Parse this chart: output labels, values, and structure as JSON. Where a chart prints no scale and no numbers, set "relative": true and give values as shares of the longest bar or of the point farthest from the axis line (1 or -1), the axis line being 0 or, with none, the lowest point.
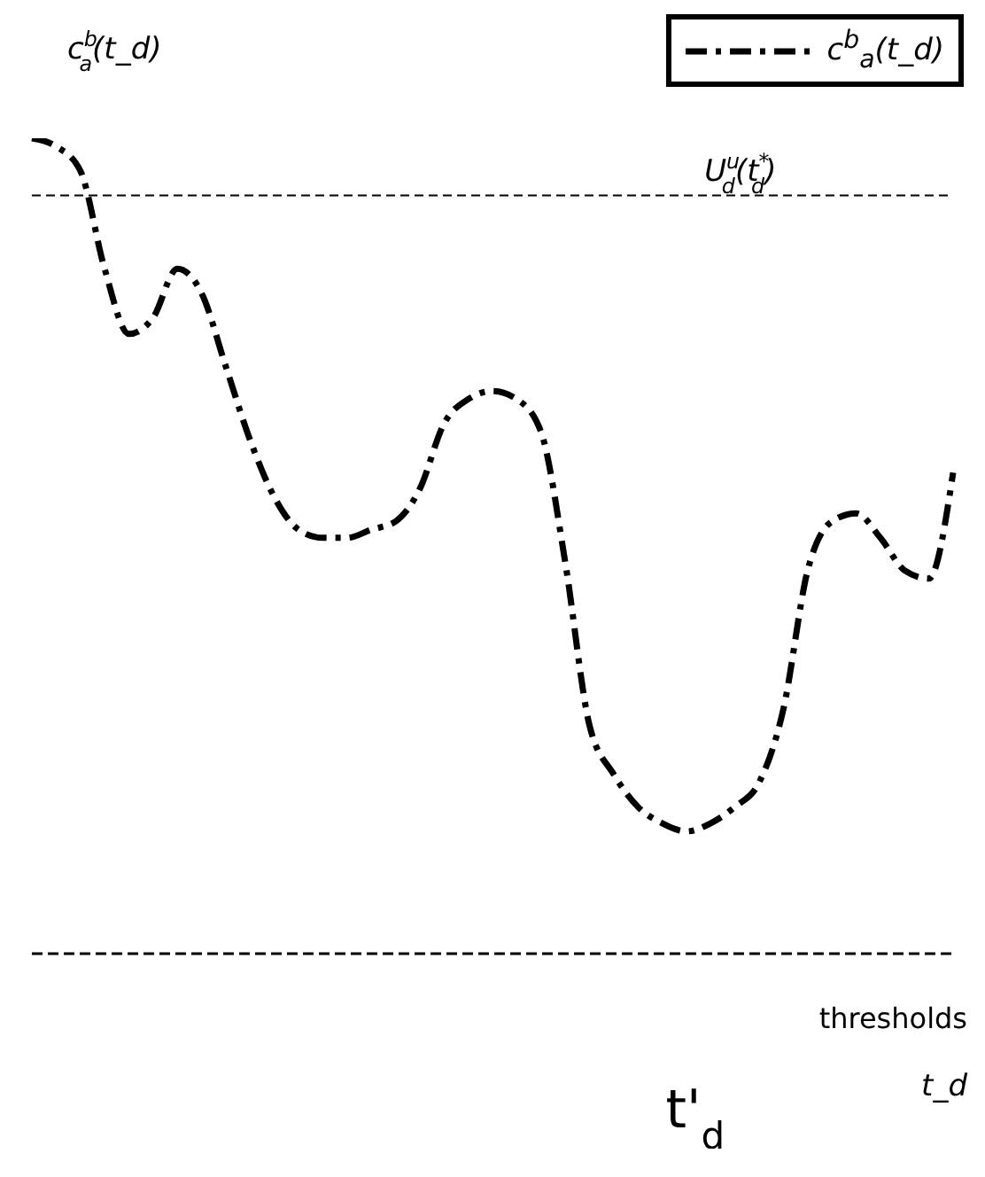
{
  "chart_data": {
    "type": "line",
    "relative": true,
    "ylabel": "c$^{b}$$_{a}$(t_d)",
    "xlabel": "t_d",
    "categories": [
      null,
      null,
      null,
      null,
      null,
      null,
      null,
      null,
      null,
      null,
      null,
      null,
      null,
      null,
      null,
      null,
      null,
      null,
      null,
      null,
      null,
      null,
      null,
      null,
      null,
      null,
      null,
      null,
      null,
      null,
      null,
      null,
      null,
      null,
      null,
      null,
      null,
      null,
      null
    ],
    "series": [
      {
        "name": "c$^{b}$$_{a}$(t_d)",
        "color": "#000000",
        "values": [
          1.0,
          0.99,
          0.96,
          0.84,
          0.76,
          0.78,
          0.84,
          0.81,
          0.72,
          0.63,
          0.56,
          0.52,
          0.51,
          0.51,
          0.52,
          0.53,
          0.57,
          0.65,
          0.68,
          0.69,
          0.68,
          0.64,
          0.48,
          0.28,
          0.22,
          0.18,
          0.16,
          0.15,
          0.16,
          0.18,
          0.21,
          0.3,
          0.47,
          0.53,
          0.54,
          0.51,
          0.47,
          0.46,
          0.59
        ]
      }
    ],
    "ref_lines": [
      {
        "axis": "y",
        "value": 0.93,
        "label": "U$^{u}$$_{d}$(t$^{*}$$_{d}$)",
        "color": "#000000",
        "line_style": "dashed"
      }
    ],
    "annotations": [
      "thresholds",
      "t'$_{d}$"
    ],
    "legend": "top right",
    "line_style": "dashed",
    "marker": "none",
    "grid": false
  }
}
